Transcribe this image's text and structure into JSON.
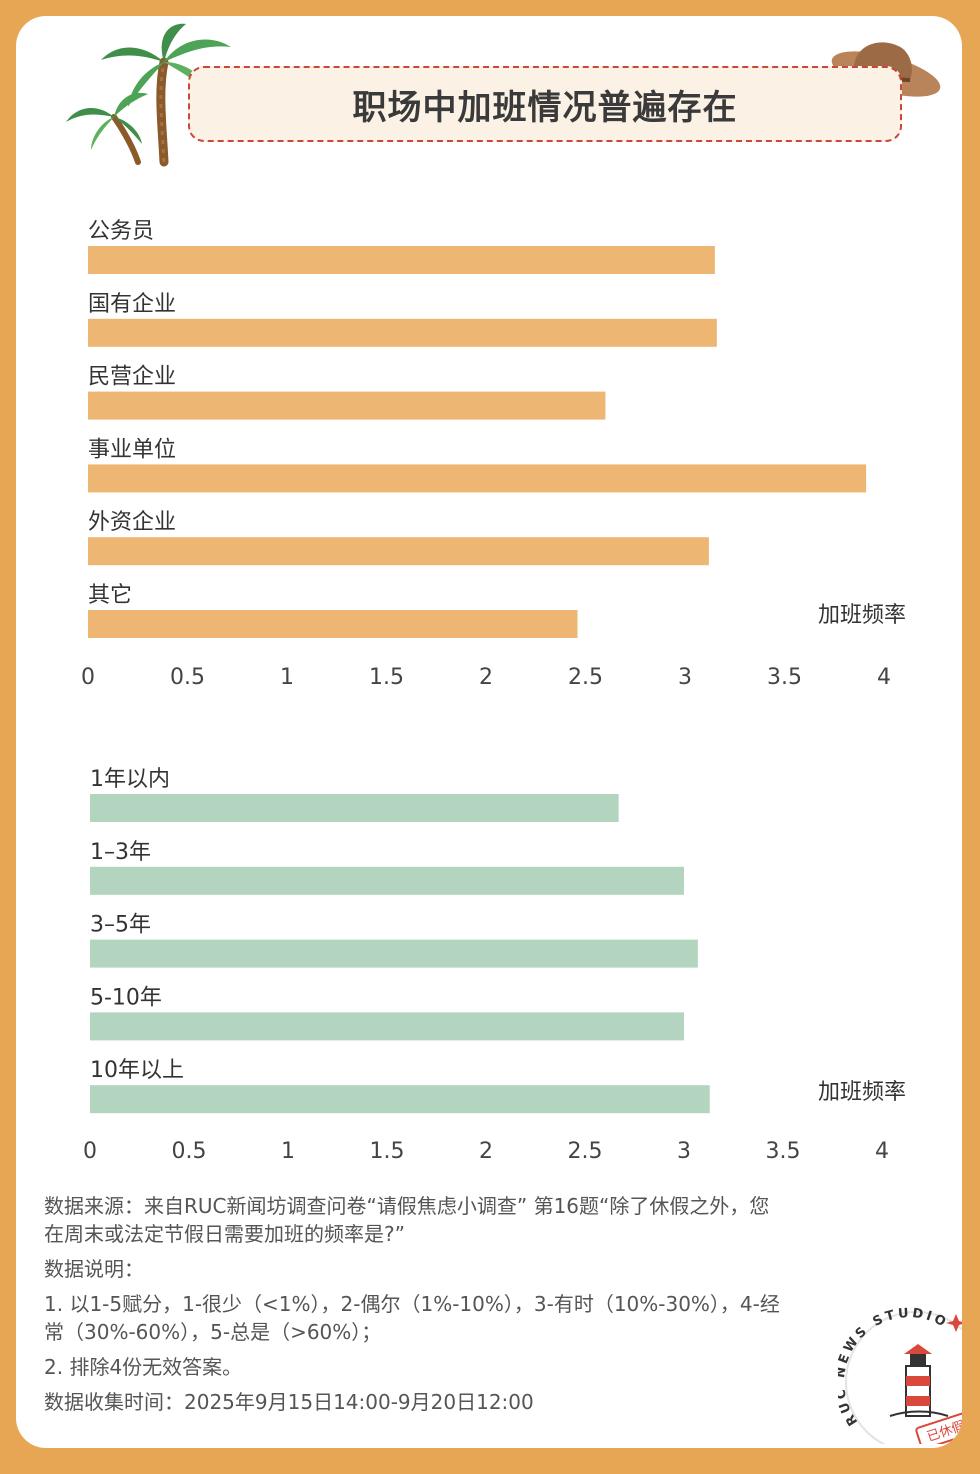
{
  "title": "职场中加班情况普遍存在",
  "colors": {
    "background": "#E7A654",
    "bar1": "#EEB673",
    "bar2": "#B3D4BF",
    "title_border": "#C9473B"
  },
  "chart_data": [
    {
      "type": "bar",
      "orientation": "horizontal",
      "categories": [
        "公务员",
        "国有企业",
        "民营企业",
        "事业单位",
        "外资企业",
        "其它"
      ],
      "values": [
        3.15,
        3.16,
        2.6,
        3.91,
        3.12,
        2.46
      ],
      "xlabel": "加班频率",
      "xlim": [
        0,
        4
      ],
      "xticks": [
        "0",
        "0.5",
        "1",
        "1.5",
        "2",
        "2.5",
        "3",
        "3.5",
        "4"
      ],
      "legend": "none",
      "grid": false
    },
    {
      "type": "bar",
      "orientation": "horizontal",
      "categories": [
        "1年以内",
        "1–3年",
        "3–5年",
        "5-10年",
        "10年以上"
      ],
      "values": [
        2.67,
        3.0,
        3.07,
        3.0,
        3.13
      ],
      "xlabel": "加班频率",
      "xlim": [
        0,
        4
      ],
      "xticks": [
        "0",
        "0.5",
        "1",
        "1.5",
        "2",
        "2.5",
        "3",
        "3.5",
        "4"
      ],
      "legend": "none",
      "grid": false
    }
  ],
  "notes": {
    "source": "数据来源：来自RUC新闻坊调查问卷“请假焦虑小调查” 第16题“除了休假之外，您在周末或法定节假日需要加班的频率是?”",
    "desc_title": "数据说明：",
    "desc_1": "1. 以1-5赋分，1-很少（<1%），2-偶尔（1%-10%），3-有时（10%-30%），4-经常（30%-60%），5-总是（>60%）；",
    "desc_2": "2. 排除4份无效答案。",
    "time": "数据收集时间：2025年9月15日14:00-9月20日12:00"
  },
  "stamp": {
    "ring_text": "RUC NEWS STUDIO",
    "badge": "已休假"
  }
}
